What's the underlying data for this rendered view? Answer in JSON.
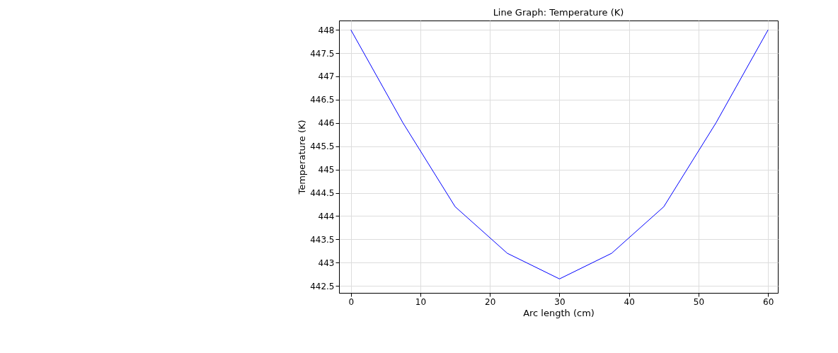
{
  "chart_data": {
    "type": "line",
    "title": "Line Graph: Temperature (K)",
    "xlabel": "Arc length (cm)",
    "ylabel": "Temperature (K)",
    "x": [
      0,
      7.5,
      15,
      22.5,
      30,
      37.5,
      45,
      52.5,
      60
    ],
    "series": [
      {
        "color": "#0000ff",
        "values": [
          448,
          446,
          444.2,
          443.2,
          442.65,
          443.2,
          444.2,
          446,
          448
        ]
      }
    ],
    "xlim": [
      -1.7,
      61.4
    ],
    "xticks": [
      0,
      10,
      20,
      30,
      40,
      50,
      60
    ],
    "ylim": [
      442.35,
      448.2
    ],
    "yticks": [
      442.5,
      443,
      443.5,
      444,
      444.5,
      445,
      445.5,
      446,
      446.5,
      447,
      447.5,
      448
    ],
    "grid": true,
    "marker": "none",
    "line_style": "solid"
  }
}
